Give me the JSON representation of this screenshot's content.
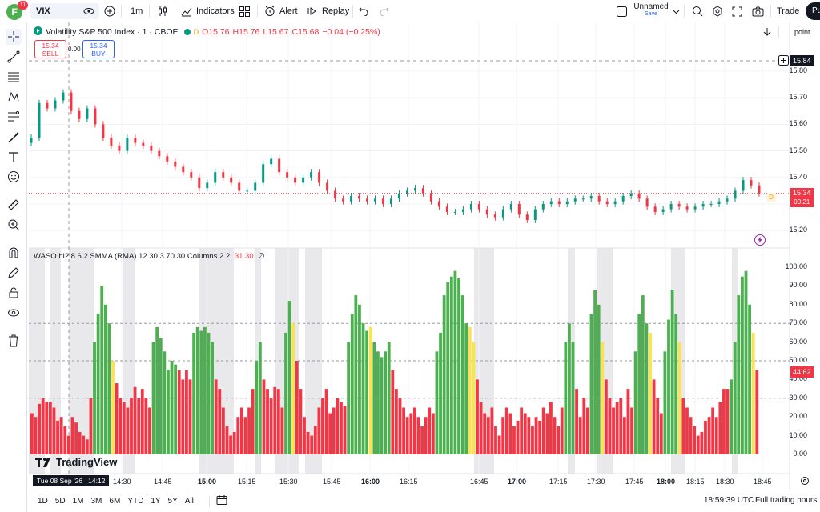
{
  "topbar": {
    "avatar_letter": "F",
    "avatar_badge": "11",
    "symbol": "VIX",
    "interval": "1m",
    "indicators_label": "Indicators",
    "alert_label": "Alert",
    "replay_label": "Replay",
    "layout_name": "Unnamed",
    "layout_save": "Save",
    "trade_label": "Trade",
    "publish_label": "Pu"
  },
  "legend": {
    "title": "Volatility S&P 500 Index · 1 · CBOE",
    "d_badge": "D",
    "o": "O15.76",
    "h": "H15.76",
    "l": "L15.67",
    "c": "C15.68",
    "chg": "−0.04 (−0.25%)",
    "sell_price": "15.34",
    "sell_label": "SELL",
    "spread": "0.00",
    "buy_price": "15.34",
    "buy_label": "BUY"
  },
  "indicator_legend": {
    "name": "WASO hl2 8 6 2 SMMA (RMA) 12 30 3 70 30 Columns 2 2",
    "value": "31.30",
    "extra": "∅"
  },
  "right_panel": {
    "point_label": "point",
    "crosshair_price": "15.84",
    "last_price": "15.34",
    "countdown": "00:21",
    "osc_value": "44.62"
  },
  "price_axis": [
    "15.80",
    "15.70",
    "15.60",
    "15.50",
    "15.40",
    "15.30",
    "15.20"
  ],
  "osc_axis": [
    "100.00",
    "90.00",
    "80.00",
    "70.00",
    "60.00",
    "50.00",
    "40.00",
    "30.00",
    "20.00",
    "10.00",
    "0.00"
  ],
  "time_axis": [
    {
      "label": "14:30",
      "bold": false
    },
    {
      "label": "14:45",
      "bold": false
    },
    {
      "label": "15:00",
      "bold": true
    },
    {
      "label": "15:15",
      "bold": false
    },
    {
      "label": "15:30",
      "bold": false
    },
    {
      "label": "15:45",
      "bold": false
    },
    {
      "label": "16:00",
      "bold": true
    },
    {
      "label": "16:15",
      "bold": false
    },
    {
      "label": "16:45",
      "bold": false
    },
    {
      "label": "17:00",
      "bold": true
    },
    {
      "label": "17:15",
      "bold": false
    },
    {
      "label": "17:30",
      "bold": false
    },
    {
      "label": "17:45",
      "bold": false
    },
    {
      "label": "18:00",
      "bold": true
    },
    {
      "label": "18:15",
      "bold": false
    },
    {
      "label": "18:30",
      "bold": false
    },
    {
      "label": "18:45",
      "bold": false
    }
  ],
  "crosshair_time": "Tue 08 Sep '26   14:12",
  "watermark": "TradingView",
  "bottom": {
    "ranges": [
      "1D",
      "5D",
      "1M",
      "3M",
      "6M",
      "YTD",
      "1Y",
      "5Y",
      "All"
    ],
    "clock": "18:59:39 UTC",
    "session": "Full trading hours"
  },
  "colors": {
    "up": "#4caf50",
    "down": "#f23645",
    "neutral": "#fbe34f",
    "accent": "#2962ff",
    "band": "#e9e9ec"
  },
  "chart_data": {
    "type": "candlestick+histogram",
    "price_ylim": [
      15.17,
      15.86
    ],
    "candles_close_approx": [
      15.55,
      15.68,
      15.66,
      15.69,
      15.72,
      15.65,
      15.62,
      15.66,
      15.6,
      15.55,
      15.52,
      15.5,
      15.55,
      15.53,
      15.52,
      15.5,
      15.48,
      15.46,
      15.44,
      15.42,
      15.4,
      15.36,
      15.38,
      15.42,
      15.4,
      15.38,
      15.35,
      15.35,
      15.38,
      15.45,
      15.47,
      15.42,
      15.4,
      15.38,
      15.4,
      15.42,
      15.38,
      15.35,
      15.32,
      15.31,
      15.33,
      15.32,
      15.31,
      15.32,
      15.3,
      15.32,
      15.34,
      15.35,
      15.36,
      15.34,
      15.31,
      15.29,
      15.27,
      15.27,
      15.28,
      15.3,
      15.28,
      15.26,
      15.25,
      15.28,
      15.3,
      15.26,
      15.24,
      15.28,
      15.3,
      15.31,
      15.3,
      15.31,
      15.32,
      15.32,
      15.33,
      15.31,
      15.3,
      15.31,
      15.33,
      15.34,
      15.32,
      15.29,
      15.27,
      15.28,
      15.3,
      15.29,
      15.28,
      15.29,
      15.3,
      15.3,
      15.31,
      15.32,
      15.35,
      15.39,
      15.37,
      15.34
    ],
    "osc_ylim": [
      0,
      100
    ],
    "osc_levels": [
      70,
      50,
      30
    ]
  }
}
